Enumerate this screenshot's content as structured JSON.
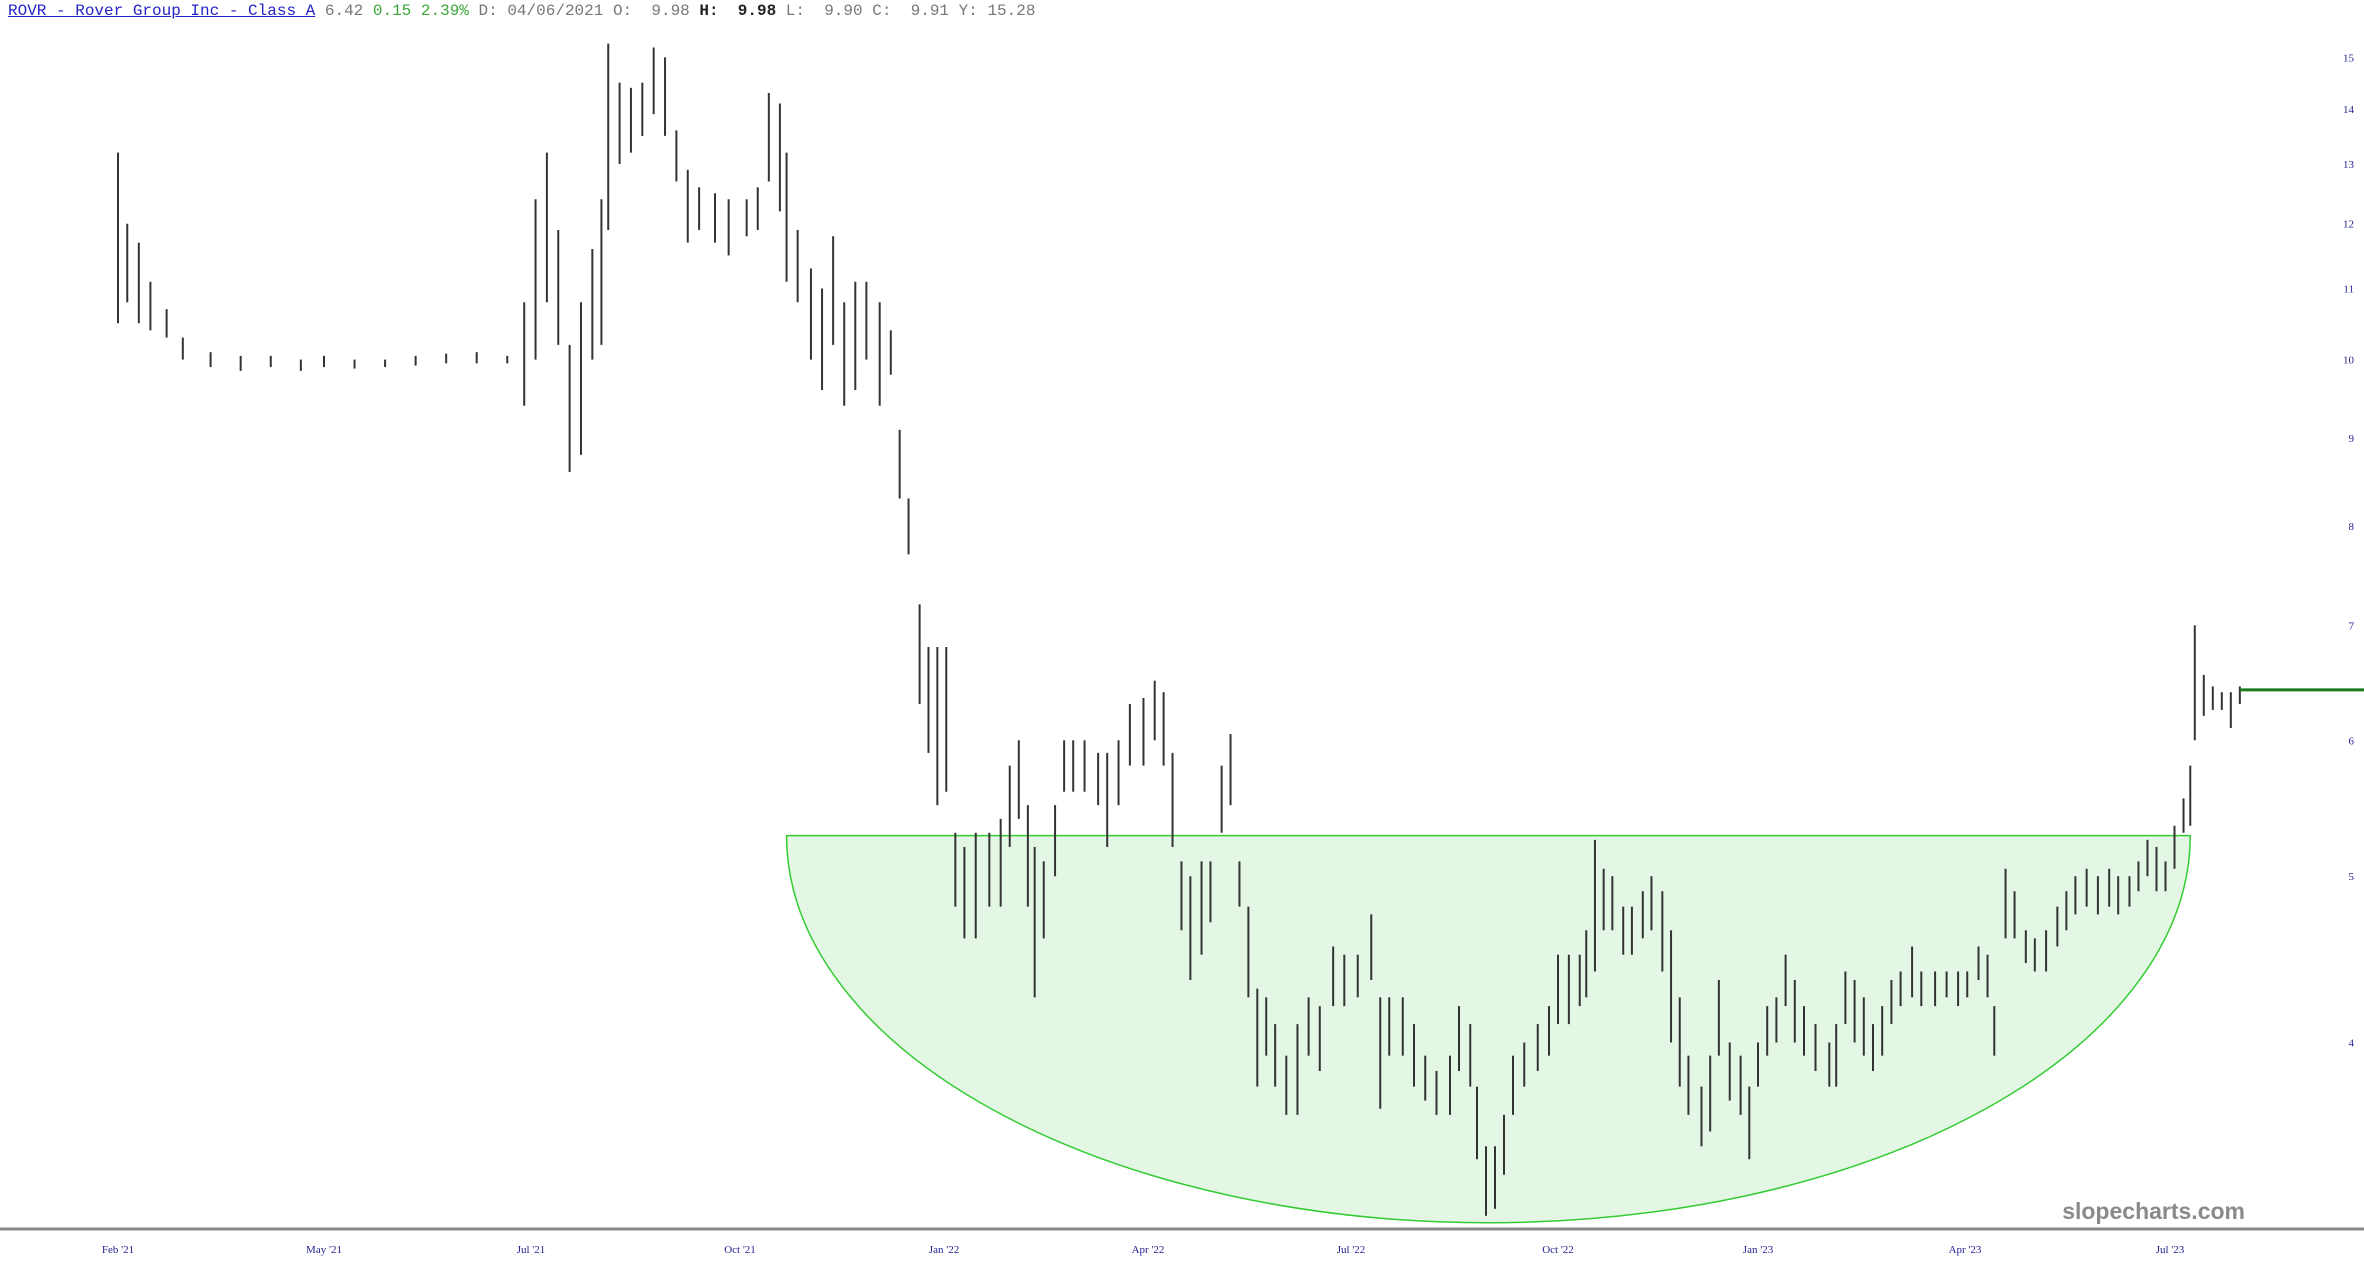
{
  "header": {
    "title": "ROVR - Rover Group Inc - Class A",
    "last": "6.42",
    "change": "0.15",
    "change_pct": "2.39%",
    "date_label": "D:",
    "date": "04/06/2021",
    "open_label": "O:",
    "open": "9.98",
    "high_label": "H:",
    "high": "9.98",
    "low_label": "L:",
    "low": "9.90",
    "close_label": "C:",
    "close": "9.91",
    "yearhigh_label": "Y:",
    "yearhigh": "15.28"
  },
  "watermark": "slopecharts.com",
  "colors": {
    "bars": "#333333",
    "bowl_stroke": "#33cc33",
    "bowl_fill": "#e4f7e4",
    "last_price_line": "#1a7a1a",
    "axis_labels": "#1f1f8f",
    "change_up": "#3aa63a"
  },
  "chart_data": {
    "type": "ohlc",
    "yscale": "log",
    "ylim": [
      3.1,
      16
    ],
    "y_ticks": [
      "4",
      "5",
      "6",
      "7",
      "8",
      "9",
      "10",
      "11",
      "12",
      "13",
      "14",
      "15"
    ],
    "x_ticks": [
      {
        "label": "Feb '21",
        "date": "2021-02-01"
      },
      {
        "label": "May '21",
        "date": "2021-05-01"
      },
      {
        "label": "Jul '21",
        "date": "2021-07-01"
      },
      {
        "label": "Oct '21",
        "date": "2021-10-01"
      },
      {
        "label": "Jan '22",
        "date": "2022-01-01"
      },
      {
        "label": "Apr '22",
        "date": "2022-04-01"
      },
      {
        "label": "Jul '22",
        "date": "2022-07-01"
      },
      {
        "label": "Oct '22",
        "date": "2022-10-01"
      },
      {
        "label": "Jan '23",
        "date": "2023-01-01"
      },
      {
        "label": "Apr '23",
        "date": "2023-04-01"
      },
      {
        "label": "Jul '23",
        "date": "2023-07-01"
      }
    ],
    "last_price": 6.42,
    "annotations": [
      {
        "type": "bowl",
        "top_price": 5.28,
        "bottom_price": 3.14,
        "start": "2021-10-22",
        "end": "2023-07-10"
      }
    ],
    "bars_fields": [
      "date",
      "high",
      "low"
    ],
    "bars": [
      [
        "2021-02-01",
        13.2,
        10.5
      ],
      [
        "2021-02-05",
        12.0,
        10.8
      ],
      [
        "2021-02-10",
        11.7,
        10.5
      ],
      [
        "2021-02-15",
        11.1,
        10.4
      ],
      [
        "2021-02-22",
        10.7,
        10.3
      ],
      [
        "2021-03-01",
        10.3,
        10.0
      ],
      [
        "2021-03-13",
        10.1,
        9.9
      ],
      [
        "2021-03-26",
        10.05,
        9.85
      ],
      [
        "2021-04-08",
        10.05,
        9.9
      ],
      [
        "2021-04-21",
        10.0,
        9.85
      ],
      [
        "2021-05-01",
        10.05,
        9.9
      ],
      [
        "2021-05-10",
        10.0,
        9.88
      ],
      [
        "2021-05-19",
        10.0,
        9.9
      ],
      [
        "2021-05-28",
        10.05,
        9.92
      ],
      [
        "2021-06-06",
        10.08,
        9.95
      ],
      [
        "2021-06-15",
        10.1,
        9.95
      ],
      [
        "2021-06-24",
        10.05,
        9.95
      ],
      [
        "2021-06-29",
        10.8,
        9.4
      ],
      [
        "2021-07-03",
        12.4,
        10.0
      ],
      [
        "2021-07-08",
        13.2,
        10.8
      ],
      [
        "2021-07-13",
        11.9,
        10.2
      ],
      [
        "2021-07-18",
        10.2,
        8.6
      ],
      [
        "2021-07-23",
        10.8,
        8.8
      ],
      [
        "2021-07-28",
        11.6,
        10.0
      ],
      [
        "2021-08-01",
        12.4,
        10.2
      ],
      [
        "2021-08-04",
        15.28,
        11.9
      ],
      [
        "2021-08-09",
        14.5,
        13.0
      ],
      [
        "2021-08-14",
        14.4,
        13.2
      ],
      [
        "2021-08-19",
        14.5,
        13.5
      ],
      [
        "2021-08-24",
        15.2,
        13.9
      ],
      [
        "2021-08-29",
        15.0,
        13.5
      ],
      [
        "2021-09-03",
        13.6,
        12.7
      ],
      [
        "2021-09-08",
        12.9,
        11.7
      ],
      [
        "2021-09-13",
        12.6,
        11.9
      ],
      [
        "2021-09-20",
        12.5,
        11.7
      ],
      [
        "2021-09-26",
        12.4,
        11.5
      ],
      [
        "2021-10-04",
        12.4,
        11.8
      ],
      [
        "2021-10-09",
        12.6,
        11.9
      ],
      [
        "2021-10-14",
        14.3,
        12.7
      ],
      [
        "2021-10-19",
        14.1,
        12.2
      ],
      [
        "2021-10-22",
        13.2,
        11.1
      ],
      [
        "2021-10-27",
        11.9,
        10.8
      ],
      [
        "2021-11-02",
        11.3,
        10.0
      ],
      [
        "2021-11-07",
        11.0,
        9.6
      ],
      [
        "2021-11-12",
        11.8,
        10.2
      ],
      [
        "2021-11-17",
        10.8,
        9.4
      ],
      [
        "2021-11-22",
        11.1,
        9.6
      ],
      [
        "2021-11-27",
        11.1,
        10.0
      ],
      [
        "2021-12-03",
        10.8,
        9.4
      ],
      [
        "2021-12-08",
        10.4,
        9.8
      ],
      [
        "2021-12-12",
        9.1,
        8.3
      ],
      [
        "2021-12-16",
        8.3,
        7.7
      ],
      [
        "2021-12-21",
        7.2,
        6.3
      ],
      [
        "2021-12-25",
        6.8,
        5.9
      ],
      [
        "2021-12-29",
        6.8,
        5.5
      ],
      [
        "2022-01-02",
        6.8,
        5.6
      ],
      [
        "2022-01-06",
        5.3,
        4.8
      ],
      [
        "2022-01-10",
        5.2,
        4.6
      ],
      [
        "2022-01-15",
        5.3,
        4.6
      ],
      [
        "2022-01-21",
        5.3,
        4.8
      ],
      [
        "2022-01-26",
        5.4,
        4.8
      ],
      [
        "2022-01-30",
        5.8,
        5.2
      ],
      [
        "2022-02-03",
        6.0,
        5.4
      ],
      [
        "2022-02-07",
        5.5,
        4.8
      ],
      [
        "2022-02-10",
        5.2,
        4.25
      ],
      [
        "2022-02-14",
        5.1,
        4.6
      ],
      [
        "2022-02-19",
        5.5,
        5.0
      ],
      [
        "2022-02-23",
        6.0,
        5.6
      ],
      [
        "2022-02-27",
        6.0,
        5.6
      ],
      [
        "2022-03-04",
        6.0,
        5.6
      ],
      [
        "2022-03-10",
        5.9,
        5.5
      ],
      [
        "2022-03-14",
        5.9,
        5.2
      ],
      [
        "2022-03-19",
        6.0,
        5.5
      ],
      [
        "2022-03-24",
        6.3,
        5.8
      ],
      [
        "2022-03-30",
        6.35,
        5.8
      ],
      [
        "2022-04-04",
        6.5,
        6.0
      ],
      [
        "2022-04-08",
        6.4,
        5.8
      ],
      [
        "2022-04-12",
        5.9,
        5.2
      ],
      [
        "2022-04-16",
        5.1,
        4.65
      ],
      [
        "2022-04-20",
        5.0,
        4.35
      ],
      [
        "2022-04-25",
        5.1,
        4.5
      ],
      [
        "2022-04-29",
        5.1,
        4.7
      ],
      [
        "2022-05-04",
        5.8,
        5.3
      ],
      [
        "2022-05-08",
        6.05,
        5.5
      ],
      [
        "2022-05-12",
        5.1,
        4.8
      ],
      [
        "2022-05-16",
        4.8,
        4.25
      ],
      [
        "2022-05-20",
        4.3,
        3.77
      ],
      [
        "2022-05-24",
        4.25,
        3.93
      ],
      [
        "2022-05-28",
        4.1,
        3.77
      ],
      [
        "2022-06-02",
        3.93,
        3.63
      ],
      [
        "2022-06-07",
        4.1,
        3.63
      ],
      [
        "2022-06-12",
        4.25,
        3.93
      ],
      [
        "2022-06-17",
        4.2,
        3.85
      ],
      [
        "2022-06-23",
        4.55,
        4.2
      ],
      [
        "2022-06-28",
        4.5,
        4.2
      ],
      [
        "2022-07-04",
        4.5,
        4.25
      ],
      [
        "2022-07-10",
        4.75,
        4.35
      ],
      [
        "2022-07-14",
        4.25,
        3.66
      ],
      [
        "2022-07-18",
        4.25,
        3.93
      ],
      [
        "2022-07-24",
        4.25,
        3.93
      ],
      [
        "2022-07-29",
        4.1,
        3.77
      ],
      [
        "2022-08-03",
        3.93,
        3.7
      ],
      [
        "2022-08-08",
        3.85,
        3.63
      ],
      [
        "2022-08-14",
        3.93,
        3.63
      ],
      [
        "2022-08-18",
        4.2,
        3.85
      ],
      [
        "2022-08-23",
        4.1,
        3.77
      ],
      [
        "2022-08-26",
        3.77,
        3.42
      ],
      [
        "2022-08-30",
        3.48,
        3.17
      ],
      [
        "2022-09-03",
        3.48,
        3.2
      ],
      [
        "2022-09-07",
        3.63,
        3.35
      ],
      [
        "2022-09-11",
        3.93,
        3.63
      ],
      [
        "2022-09-16",
        4.0,
        3.77
      ],
      [
        "2022-09-22",
        4.1,
        3.85
      ],
      [
        "2022-09-27",
        4.2,
        3.93
      ],
      [
        "2022-10-01",
        4.5,
        4.1
      ],
      [
        "2022-10-06",
        4.5,
        4.1
      ],
      [
        "2022-10-11",
        4.5,
        4.2
      ],
      [
        "2022-10-14",
        4.65,
        4.25
      ],
      [
        "2022-10-18",
        5.25,
        4.4
      ],
      [
        "2022-10-22",
        5.05,
        4.65
      ],
      [
        "2022-10-26",
        5.0,
        4.65
      ],
      [
        "2022-10-31",
        4.8,
        4.5
      ],
      [
        "2022-11-04",
        4.8,
        4.5
      ],
      [
        "2022-11-09",
        4.9,
        4.6
      ],
      [
        "2022-11-13",
        5.0,
        4.65
      ],
      [
        "2022-11-18",
        4.9,
        4.4
      ],
      [
        "2022-11-22",
        4.65,
        4.0
      ],
      [
        "2022-11-26",
        4.25,
        3.77
      ],
      [
        "2022-11-30",
        3.93,
        3.63
      ],
      [
        "2022-12-06",
        3.77,
        3.48
      ],
      [
        "2022-12-10",
        3.93,
        3.55
      ],
      [
        "2022-12-14",
        4.35,
        3.93
      ],
      [
        "2022-12-19",
        4.0,
        3.7
      ],
      [
        "2022-12-24",
        3.93,
        3.63
      ],
      [
        "2022-12-28",
        3.77,
        3.42
      ],
      [
        "2023-01-01",
        4.0,
        3.77
      ],
      [
        "2023-01-05",
        4.2,
        3.93
      ],
      [
        "2023-01-09",
        4.25,
        4.0
      ],
      [
        "2023-01-13",
        4.5,
        4.2
      ],
      [
        "2023-01-17",
        4.35,
        4.0
      ],
      [
        "2023-01-21",
        4.2,
        3.93
      ],
      [
        "2023-01-26",
        4.1,
        3.85
      ],
      [
        "2023-02-01",
        4.0,
        3.77
      ],
      [
        "2023-02-04",
        4.1,
        3.77
      ],
      [
        "2023-02-08",
        4.4,
        4.1
      ],
      [
        "2023-02-12",
        4.35,
        4.0
      ],
      [
        "2023-02-16",
        4.25,
        3.93
      ],
      [
        "2023-02-20",
        4.1,
        3.85
      ],
      [
        "2023-02-24",
        4.2,
        3.93
      ],
      [
        "2023-02-28",
        4.35,
        4.1
      ],
      [
        "2023-03-04",
        4.4,
        4.2
      ],
      [
        "2023-03-09",
        4.55,
        4.25
      ],
      [
        "2023-03-13",
        4.4,
        4.2
      ],
      [
        "2023-03-19",
        4.4,
        4.2
      ],
      [
        "2023-03-24",
        4.4,
        4.25
      ],
      [
        "2023-03-29",
        4.4,
        4.2
      ],
      [
        "2023-04-02",
        4.4,
        4.25
      ],
      [
        "2023-04-07",
        4.55,
        4.35
      ],
      [
        "2023-04-11",
        4.5,
        4.25
      ],
      [
        "2023-04-14",
        4.2,
        3.93
      ],
      [
        "2023-04-19",
        5.05,
        4.6
      ],
      [
        "2023-04-23",
        4.9,
        4.6
      ],
      [
        "2023-04-28",
        4.65,
        4.45
      ],
      [
        "2023-05-02",
        4.6,
        4.4
      ],
      [
        "2023-05-07",
        4.65,
        4.4
      ],
      [
        "2023-05-12",
        4.8,
        4.55
      ],
      [
        "2023-05-16",
        4.9,
        4.65
      ],
      [
        "2023-05-20",
        5.0,
        4.75
      ],
      [
        "2023-05-25",
        5.05,
        4.8
      ],
      [
        "2023-05-30",
        5.0,
        4.75
      ],
      [
        "2023-06-04",
        5.05,
        4.8
      ],
      [
        "2023-06-08",
        5.0,
        4.75
      ],
      [
        "2023-06-13",
        5.0,
        4.8
      ],
      [
        "2023-06-17",
        5.1,
        4.9
      ],
      [
        "2023-06-21",
        5.25,
        5.0
      ],
      [
        "2023-06-25",
        5.2,
        4.9
      ],
      [
        "2023-06-29",
        5.1,
        4.9
      ],
      [
        "2023-07-03",
        5.35,
        5.05
      ],
      [
        "2023-07-07",
        5.55,
        5.3
      ],
      [
        "2023-07-10",
        5.8,
        5.35
      ],
      [
        "2023-07-12",
        7.0,
        6.0
      ],
      [
        "2023-07-16",
        6.55,
        6.2
      ],
      [
        "2023-07-20",
        6.45,
        6.25
      ],
      [
        "2023-07-24",
        6.4,
        6.25
      ],
      [
        "2023-07-28",
        6.4,
        6.1
      ],
      [
        "2023-08-01",
        6.45,
        6.3
      ]
    ]
  }
}
